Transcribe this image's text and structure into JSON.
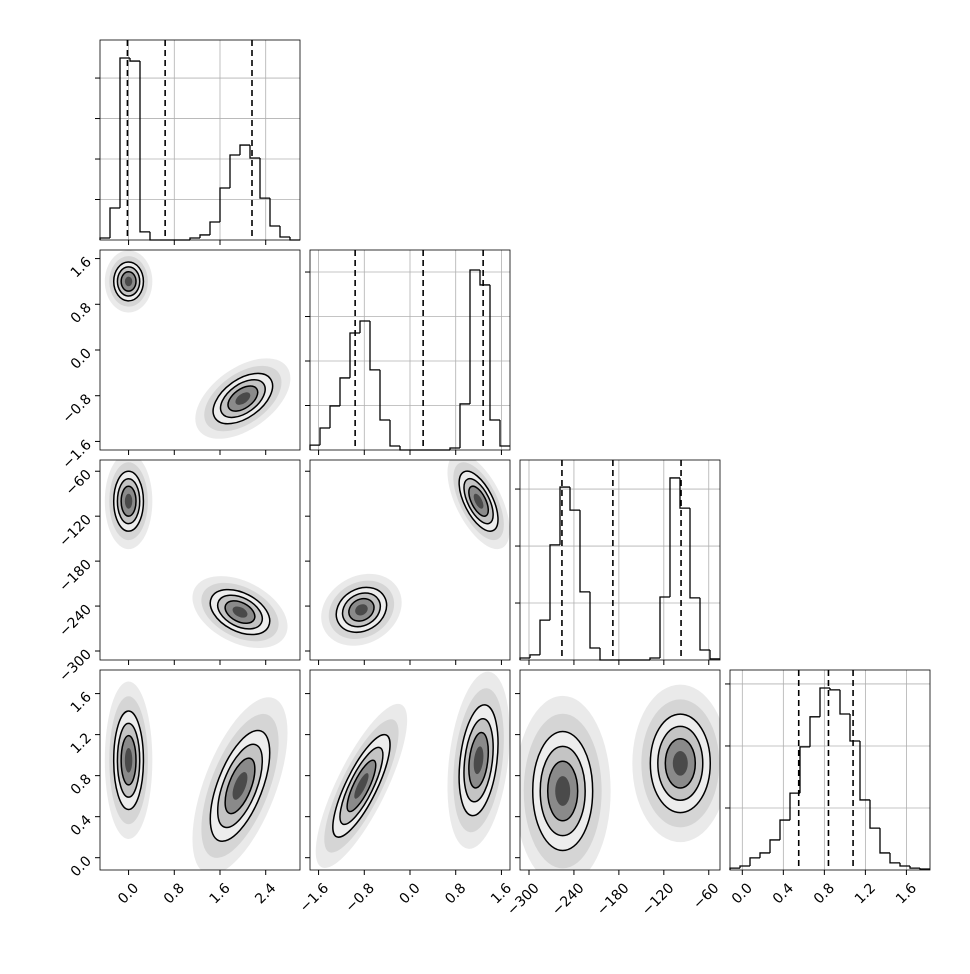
{
  "chart_data": {
    "type": "corner",
    "color": "#000000",
    "grid": true,
    "parameters": [
      {
        "lim": [
          -0.5,
          3.0
        ],
        "ticks": [
          {
            "value": 0,
            "label": "0.0"
          },
          {
            "value": 0.8,
            "label": "0.8"
          },
          {
            "value": 1.6,
            "label": "1.6"
          },
          {
            "value": 2.4,
            "label": "2.4"
          }
        ],
        "quantiles": [
          -0.02,
          0.64,
          2.16
        ],
        "bins": [
          -0.5,
          -0.325,
          -0.15,
          0.025,
          0.2,
          0.375,
          0.55,
          0.725,
          0.9,
          1.075,
          1.25,
          1.425,
          1.6,
          1.775,
          1.95,
          2.125,
          2.3,
          2.475,
          2.65,
          2.825,
          3.0
        ],
        "counts": [
          10,
          158,
          899,
          884,
          40,
          0,
          0,
          0,
          0,
          10,
          25,
          89,
          257,
          420,
          469,
          405,
          207,
          69,
          15,
          0
        ],
        "count_lim": [
          0,
          988
        ],
        "count_ticks": [
          200,
          400,
          600,
          800
        ]
      },
      {
        "lim": [
          -1.75,
          1.75
        ],
        "ticks": [
          {
            "value": -1.6,
            "label": "−1.6"
          },
          {
            "value": -0.8,
            "label": "−0.8"
          },
          {
            "value": 0,
            "label": "0.0"
          },
          {
            "value": 0.8,
            "label": "0.8"
          },
          {
            "value": 1.6,
            "label": "1.6"
          }
        ],
        "quantiles": [
          -0.96,
          0.23,
          1.28
        ],
        "bins": [
          -1.75,
          -1.575,
          -1.4,
          -1.225,
          -1.05,
          -0.875,
          -0.7,
          -0.525,
          -0.35,
          -0.175,
          0,
          0.175,
          0.35,
          0.525,
          0.7,
          0.875,
          1.05,
          1.225,
          1.4,
          1.575,
          1.75
        ],
        "counts": [
          22,
          99,
          198,
          324,
          526,
          580,
          360,
          135,
          18,
          0,
          0,
          0,
          0,
          0,
          9,
          207,
          809,
          742,
          135,
          18
        ],
        "count_lim": [
          0,
          899
        ],
        "count_ticks": [
          200,
          400,
          600,
          800
        ]
      },
      {
        "lim": [
          -312,
          -45
        ],
        "ticks": [
          {
            "value": -300,
            "label": "−300"
          },
          {
            "value": -240,
            "label": "−240"
          },
          {
            "value": -180,
            "label": "−180"
          },
          {
            "value": -120,
            "label": "−120"
          },
          {
            "value": -60,
            "label": "−60"
          }
        ],
        "quantiles": [
          -256,
          -188,
          -97
        ],
        "bins": [
          -312,
          -298.65,
          -285.3,
          -271.95,
          -258.6,
          -245.25,
          -231.9,
          -218.55,
          -205.2,
          -191.85,
          -178.5,
          -165.15,
          -151.8,
          -138.45,
          -125.1,
          -111.75,
          -98.4,
          -85.05,
          -71.7,
          -58.35,
          -45
        ],
        "counts": [
          7,
          18,
          140,
          404,
          607,
          526,
          239,
          42,
          0,
          0,
          0,
          0,
          0,
          7,
          221,
          639,
          533,
          218,
          35,
          4
        ],
        "count_lim": [
          0,
          702
        ],
        "count_ticks": [
          200,
          400,
          600
        ]
      },
      {
        "lim": [
          -0.12,
          1.83
        ],
        "ticks": [
          {
            "value": 0,
            "label": "0.0"
          },
          {
            "value": 0.4,
            "label": "0.4"
          },
          {
            "value": 0.8,
            "label": "0.8"
          },
          {
            "value": 1.2,
            "label": "1.2"
          },
          {
            "value": 1.6,
            "label": "1.6"
          }
        ],
        "quantiles": [
          0.55,
          0.84,
          1.08
        ],
        "bins": [
          -0.12,
          -0.0225,
          0.075,
          0.1725,
          0.27,
          0.3675,
          0.465,
          0.5625,
          0.66,
          0.7575,
          0.855,
          0.9525,
          1.05,
          1.1475,
          1.245,
          1.3425,
          1.44,
          1.5375,
          1.635,
          1.7325,
          1.83
        ],
        "counts": [
          6,
          13,
          39,
          55,
          97,
          161,
          248,
          397,
          494,
          587,
          581,
          503,
          416,
          226,
          135,
          55,
          23,
          13,
          6,
          3
        ],
        "count_lim": [
          0,
          645
        ],
        "count_ticks": [
          200,
          400,
          600
        ]
      }
    ],
    "pairs": [
      {
        "clusters": [
          {
            "x": 0.0,
            "y": 1.2,
            "sx": 0.13,
            "sy": 0.17,
            "rho": 0
          },
          {
            "x": 2.0,
            "y": -0.85,
            "sx": 0.26,
            "sy": 0.22,
            "rho": 0.5
          }
        ]
      },
      {
        "clusters": [
          {
            "x": 0.0,
            "y": -100,
            "sx": 0.13,
            "sy": 20,
            "rho": 0
          },
          {
            "x": 1.95,
            "y": -248,
            "sx": 0.26,
            "sy": 15,
            "rho": -0.4
          }
        ]
      },
      {
        "clusters": [
          {
            "x": 1.2,
            "y": -100,
            "sx": 0.17,
            "sy": 20,
            "rho": -0.6
          },
          {
            "x": -0.85,
            "y": -245,
            "sx": 0.22,
            "sy": 15,
            "rho": 0.2
          }
        ]
      },
      {
        "clusters": [
          {
            "x": 0.0,
            "y": 0.95,
            "sx": 0.13,
            "sy": 0.24,
            "rho": 0
          },
          {
            "x": 1.95,
            "y": 0.7,
            "sx": 0.26,
            "sy": 0.27,
            "rho": 0.6
          }
        ]
      },
      {
        "clusters": [
          {
            "x": -0.85,
            "y": 0.7,
            "sx": 0.25,
            "sy": 0.25,
            "rho": 0.8
          },
          {
            "x": 1.2,
            "y": 0.95,
            "sx": 0.17,
            "sy": 0.27,
            "rho": 0.3
          }
        ]
      },
      {
        "clusters": [
          {
            "x": -255,
            "y": 0.65,
            "sx": 20,
            "sy": 0.29,
            "rho": 0
          },
          {
            "x": -98,
            "y": 0.92,
            "sx": 20,
            "sy": 0.24,
            "rho": 0
          }
        ]
      }
    ]
  }
}
